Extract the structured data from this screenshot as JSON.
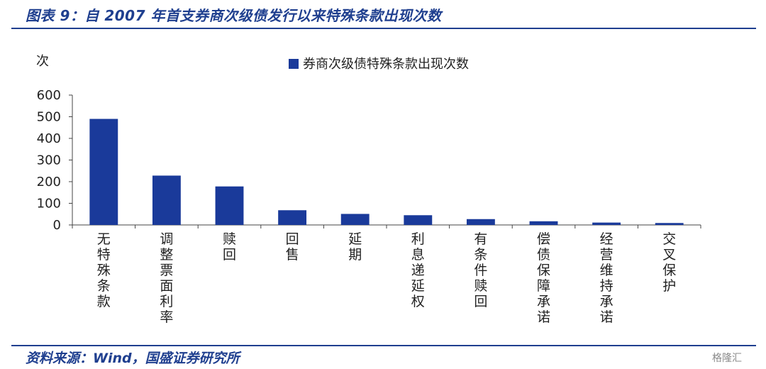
{
  "header": {
    "title": "图表 9：自 2007 年首支券商次级债发行以来特殊条款出现次数"
  },
  "footer": {
    "source": "资料来源：Wind，国盛证券研究所",
    "watermark": "格隆汇"
  },
  "colors": {
    "bar": "#1a3a9a",
    "brand": "#1f3f8f"
  },
  "chart_data": {
    "type": "bar",
    "title": "",
    "ylabel": "次",
    "xlabel": "",
    "ylim": [
      0,
      600
    ],
    "yticks": [
      0,
      100,
      200,
      300,
      400,
      500,
      600
    ],
    "grid": false,
    "legend": "top-center",
    "categories": [
      "无特殊条款",
      "调整票面利率",
      "赎回",
      "回售",
      "延期",
      "利息递延权",
      "有条件赎回",
      "偿债保障承诺",
      "经营维持承诺",
      "交叉保护"
    ],
    "series": [
      {
        "name": "券商次级债特殊条款出现次数",
        "values": [
          490,
          228,
          178,
          68,
          51,
          45,
          27,
          17,
          11,
          9
        ]
      }
    ]
  }
}
